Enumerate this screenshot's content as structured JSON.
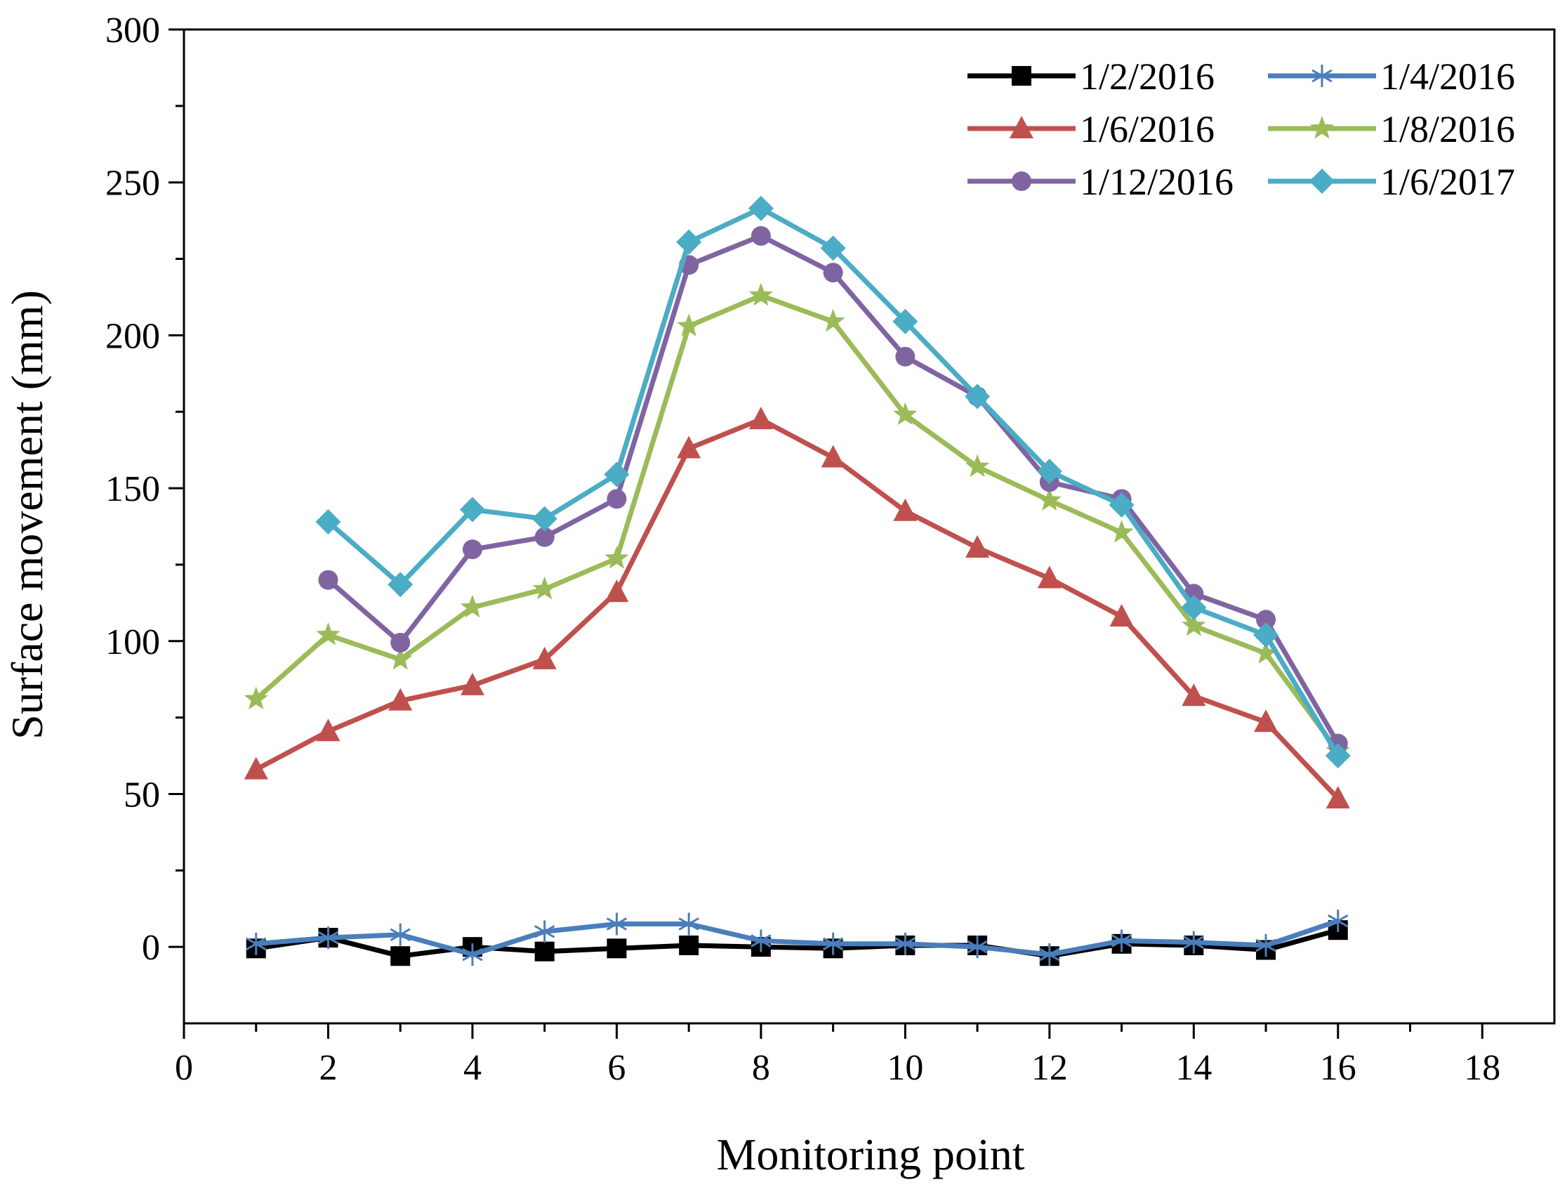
{
  "chart_data": {
    "type": "line",
    "title": "",
    "xlabel": "Monitoring point",
    "ylabel": "Surface movement (mm)",
    "xlim": [
      0,
      19
    ],
    "ylim": [
      -25,
      300
    ],
    "xticks": [
      0,
      2,
      4,
      6,
      8,
      10,
      12,
      14,
      16,
      18
    ],
    "yticks": [
      0,
      50,
      100,
      150,
      200,
      250,
      300
    ],
    "grid": false,
    "legend": "top-right",
    "x": [
      1,
      2,
      3,
      4,
      5,
      6,
      7,
      8,
      9,
      10,
      11,
      12,
      13,
      14,
      15,
      16
    ],
    "series": [
      {
        "name": "1/2/2016",
        "color": "#000000",
        "marker": "square",
        "x": [
          1,
          2,
          3,
          4,
          5,
          6,
          7,
          8,
          9,
          10,
          11,
          12,
          13,
          14,
          15,
          16
        ],
        "values": [
          -0.5,
          3,
          -3,
          0,
          -1.5,
          -0.5,
          0.5,
          0,
          -0.5,
          0.5,
          0.5,
          -3,
          1,
          0.5,
          -1,
          5.5
        ]
      },
      {
        "name": "1/4/2016",
        "color": "#4A7EBB",
        "marker": "asterisk",
        "x": [
          1,
          2,
          3,
          4,
          5,
          6,
          7,
          8,
          9,
          10,
          11,
          12,
          13,
          14,
          15,
          16
        ],
        "values": [
          1,
          3,
          4,
          -2.5,
          5,
          7.5,
          7.5,
          2,
          1,
          1,
          0,
          -2.5,
          2,
          1.5,
          0.5,
          8.5
        ]
      },
      {
        "name": "1/6/2016",
        "color": "#C0504D",
        "marker": "triangle",
        "x": [
          1,
          2,
          3,
          4,
          5,
          6,
          7,
          8,
          9,
          10,
          11,
          12,
          13,
          14,
          15,
          16
        ],
        "values": [
          58,
          70.5,
          80.5,
          85.5,
          94,
          116,
          163,
          172.5,
          160,
          142.5,
          130.5,
          120.5,
          108,
          82,
          73.5,
          48.5
        ]
      },
      {
        "name": "1/8/2016",
        "color": "#9BBB59",
        "marker": "star",
        "x": [
          1,
          2,
          3,
          4,
          5,
          6,
          7,
          8,
          9,
          10,
          11,
          12,
          13,
          14,
          15,
          16
        ],
        "values": [
          81,
          102,
          94,
          111,
          117,
          127,
          203,
          213,
          204.5,
          174,
          157,
          146,
          135.5,
          105,
          96,
          64
        ]
      },
      {
        "name": "1/12/2016",
        "color": "#8064A2",
        "marker": "circle",
        "x": [
          2,
          3,
          4,
          5,
          6,
          7,
          8,
          9,
          10,
          11,
          12,
          13,
          14,
          15,
          16
        ],
        "values": [
          120,
          99.5,
          130,
          134,
          146.5,
          223,
          232.5,
          220.5,
          193,
          180,
          152,
          146.5,
          115.5,
          107,
          66.5
        ]
      },
      {
        "name": "1/6/2017",
        "color": "#4BACC6",
        "marker": "diamond",
        "x": [
          2,
          3,
          4,
          5,
          6,
          7,
          8,
          9,
          10,
          11,
          12,
          13,
          14,
          15,
          16
        ],
        "values": [
          139,
          118.5,
          143,
          140,
          154.5,
          230.5,
          241.5,
          228.5,
          204.5,
          180,
          155.5,
          144.5,
          111,
          102,
          62.5
        ]
      }
    ]
  }
}
